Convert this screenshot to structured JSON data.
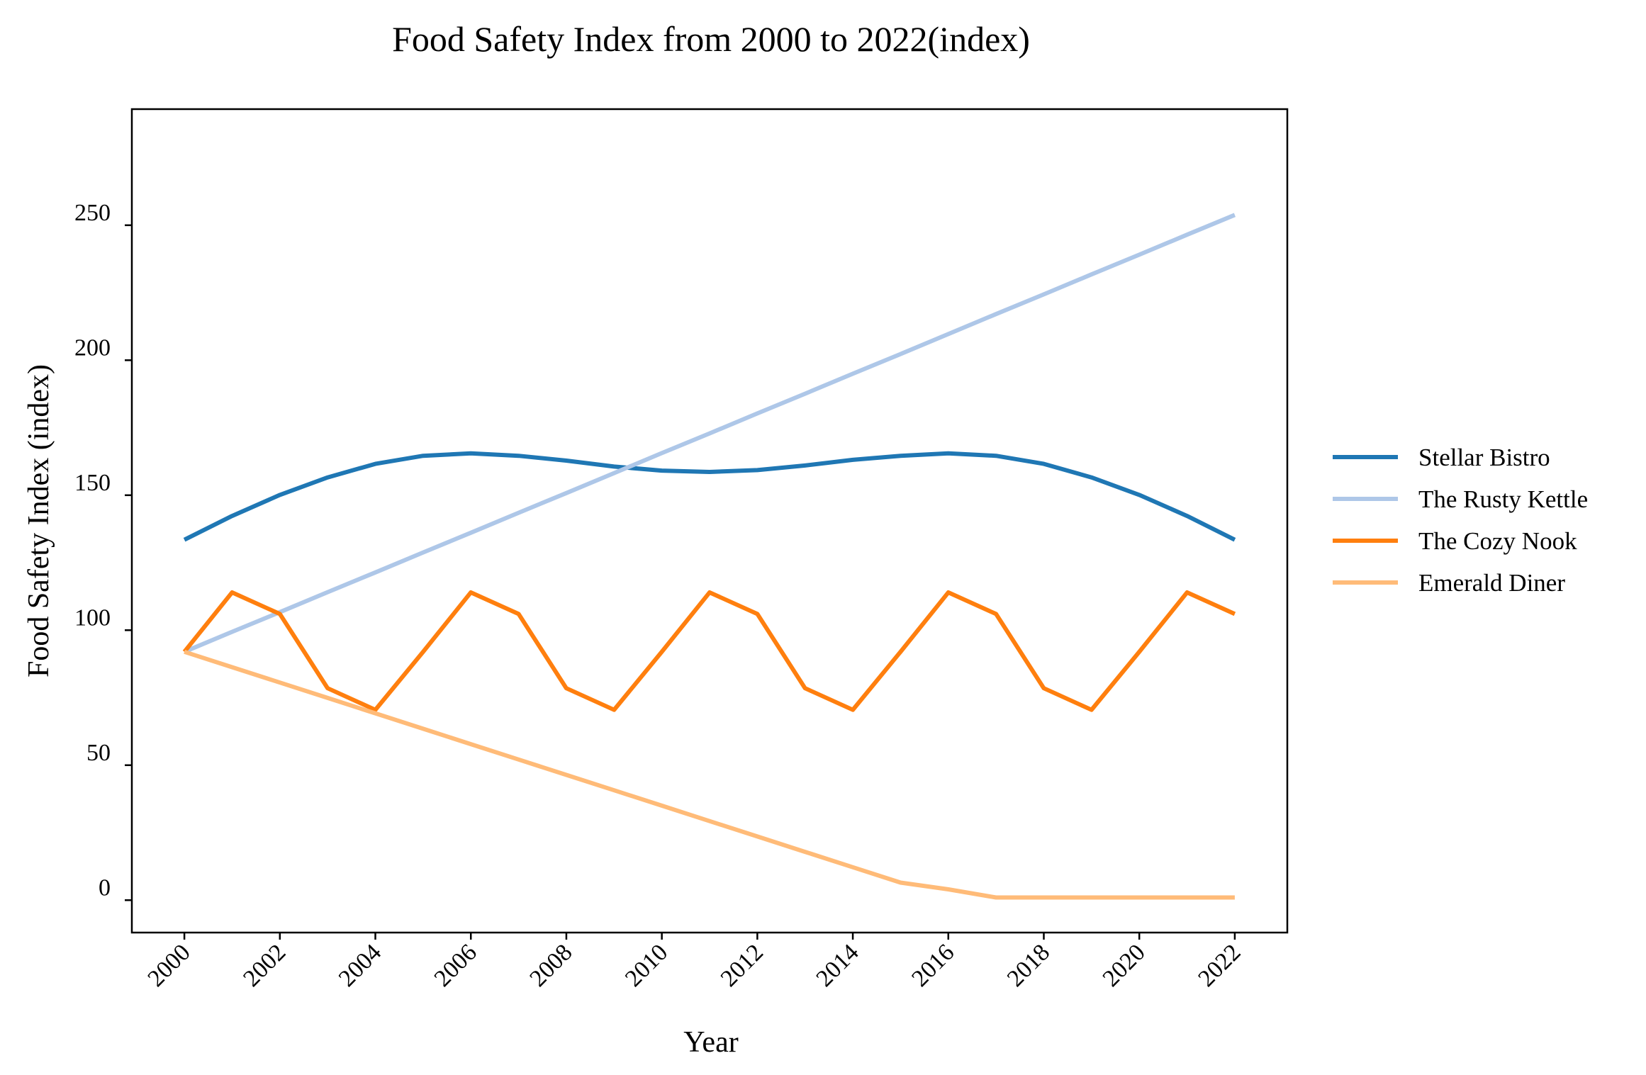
{
  "chart_data": {
    "type": "line",
    "title": "Food Safety Index from 2000 to 2022(index)",
    "xlabel": "Year",
    "ylabel": "Food Safety Index (index)",
    "x": [
      2000,
      2001,
      2002,
      2003,
      2004,
      2005,
      2006,
      2007,
      2008,
      2009,
      2010,
      2011,
      2012,
      2013,
      2014,
      2015,
      2016,
      2017,
      2018,
      2019,
      2020,
      2021,
      2022
    ],
    "x_ticks": [
      "2000",
      "2002",
      "2004",
      "2006",
      "2008",
      "2010",
      "2012",
      "2014",
      "2016",
      "2018",
      "2020",
      "2022"
    ],
    "y_ticks": [
      "0",
      "50",
      "100",
      "150",
      "200",
      "250"
    ],
    "xlim": [
      1998.9,
      2023.1
    ],
    "ylim": [
      -12,
      293
    ],
    "grid": false,
    "legend_position": "right",
    "series": [
      {
        "name": "Stellar Bistro",
        "color": "#1f77b4",
        "values": [
          133.5,
          142.3,
          150.1,
          156.6,
          161.6,
          164.6,
          165.5,
          164.6,
          162.8,
          160.6,
          159.1,
          158.6,
          159.3,
          161.0,
          163.1,
          164.6,
          165.5,
          164.6,
          161.6,
          156.6,
          150.1,
          142.3,
          133.5
        ]
      },
      {
        "name": "The Rusty Kettle",
        "color": "#aec7e8",
        "values": [
          92.0,
          99.4,
          106.7,
          114.1,
          121.4,
          128.8,
          136.1,
          143.5,
          150.8,
          158.2,
          165.6,
          172.9,
          180.3,
          187.6,
          195.0,
          202.3,
          209.7,
          217.1,
          224.4,
          231.8,
          239.1,
          246.5,
          253.8
        ]
      },
      {
        "name": "The Cozy Nook",
        "color": "#ff7f0e",
        "values": [
          92.0,
          114.0,
          106.0,
          78.5,
          70.5,
          92.0,
          114.0,
          106.0,
          78.5,
          70.5,
          92.0,
          114.0,
          106.0,
          78.5,
          70.5,
          92.0,
          114.0,
          106.0,
          78.5,
          70.5,
          92.0,
          114.0,
          106.0
        ]
      },
      {
        "name": "Emerald Diner",
        "color": "#ffbb78",
        "values": [
          92.0,
          86.3,
          80.6,
          74.9,
          69.2,
          63.5,
          57.8,
          52.1,
          46.4,
          40.7,
          35.0,
          29.3,
          23.6,
          17.9,
          12.2,
          6.5,
          4.0,
          1.0,
          1.0,
          1.0,
          1.0,
          1.0,
          1.0
        ]
      }
    ]
  }
}
